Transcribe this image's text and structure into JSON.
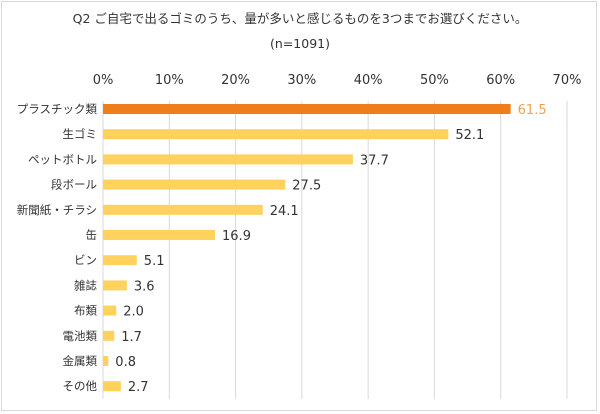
{
  "chart_data": {
    "type": "bar",
    "orientation": "horizontal",
    "title": "Q2 ご自宅で出るゴミのうち、量が多いと感じるものを3つまでお選びください。",
    "subtitle": "(n=1091)",
    "xlabel": "",
    "ylabel": "",
    "xlim": [
      0,
      70
    ],
    "x_ticks": [
      "0%",
      "10%",
      "20%",
      "30%",
      "40%",
      "50%",
      "60%",
      "70%"
    ],
    "x_tick_values": [
      0,
      10,
      20,
      30,
      40,
      50,
      60,
      70
    ],
    "grid": true,
    "legend": "none",
    "categories": [
      "プラスチック類",
      "生ゴミ",
      "ペットボトル",
      "段ボール",
      "新聞紙・チラシ",
      "缶",
      "ビン",
      "雑誌",
      "布類",
      "電池類",
      "金属類",
      "その他"
    ],
    "values": [
      61.5,
      52.1,
      37.7,
      27.5,
      24.1,
      16.9,
      5.1,
      3.6,
      2.0,
      1.7,
      0.8,
      2.7
    ],
    "value_labels": [
      "61.5",
      "52.1",
      "37.7",
      "27.5",
      "24.1",
      "16.9",
      "5.1",
      "3.6",
      "2.0",
      "1.7",
      "0.8",
      "2.7"
    ],
    "highlight_index": 0,
    "colors": {
      "bar": "#ffd25e",
      "highlight_bar": "#ef7d1a",
      "highlight_label": "#f2a14e",
      "label": "#333333",
      "grid": "#d9d9d9"
    }
  }
}
